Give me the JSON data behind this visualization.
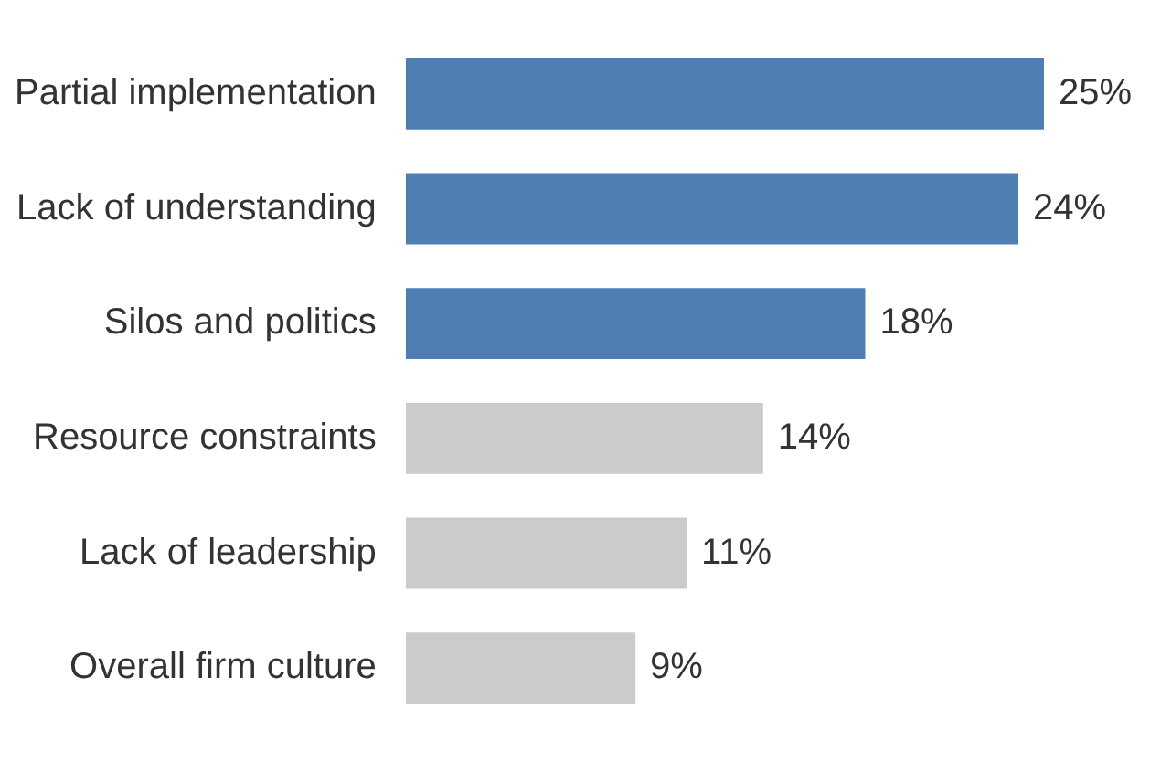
{
  "chart_data": {
    "type": "bar",
    "orientation": "horizontal",
    "categories": [
      "Partial implementation",
      "Lack of understanding",
      "Silos and politics",
      "Resource constraints",
      "Lack of leadership",
      "Overall firm culture"
    ],
    "values": [
      25,
      24,
      18,
      14,
      11,
      9
    ],
    "colors": [
      "#4f7eb3",
      "#4f7eb3",
      "#4f7eb3",
      "#cbcbc9",
      "#cbcbc9",
      "#cbcbc9"
    ],
    "value_labels": [
      "25%",
      "24%",
      "18%",
      "14%",
      "11%",
      "9%"
    ]
  }
}
